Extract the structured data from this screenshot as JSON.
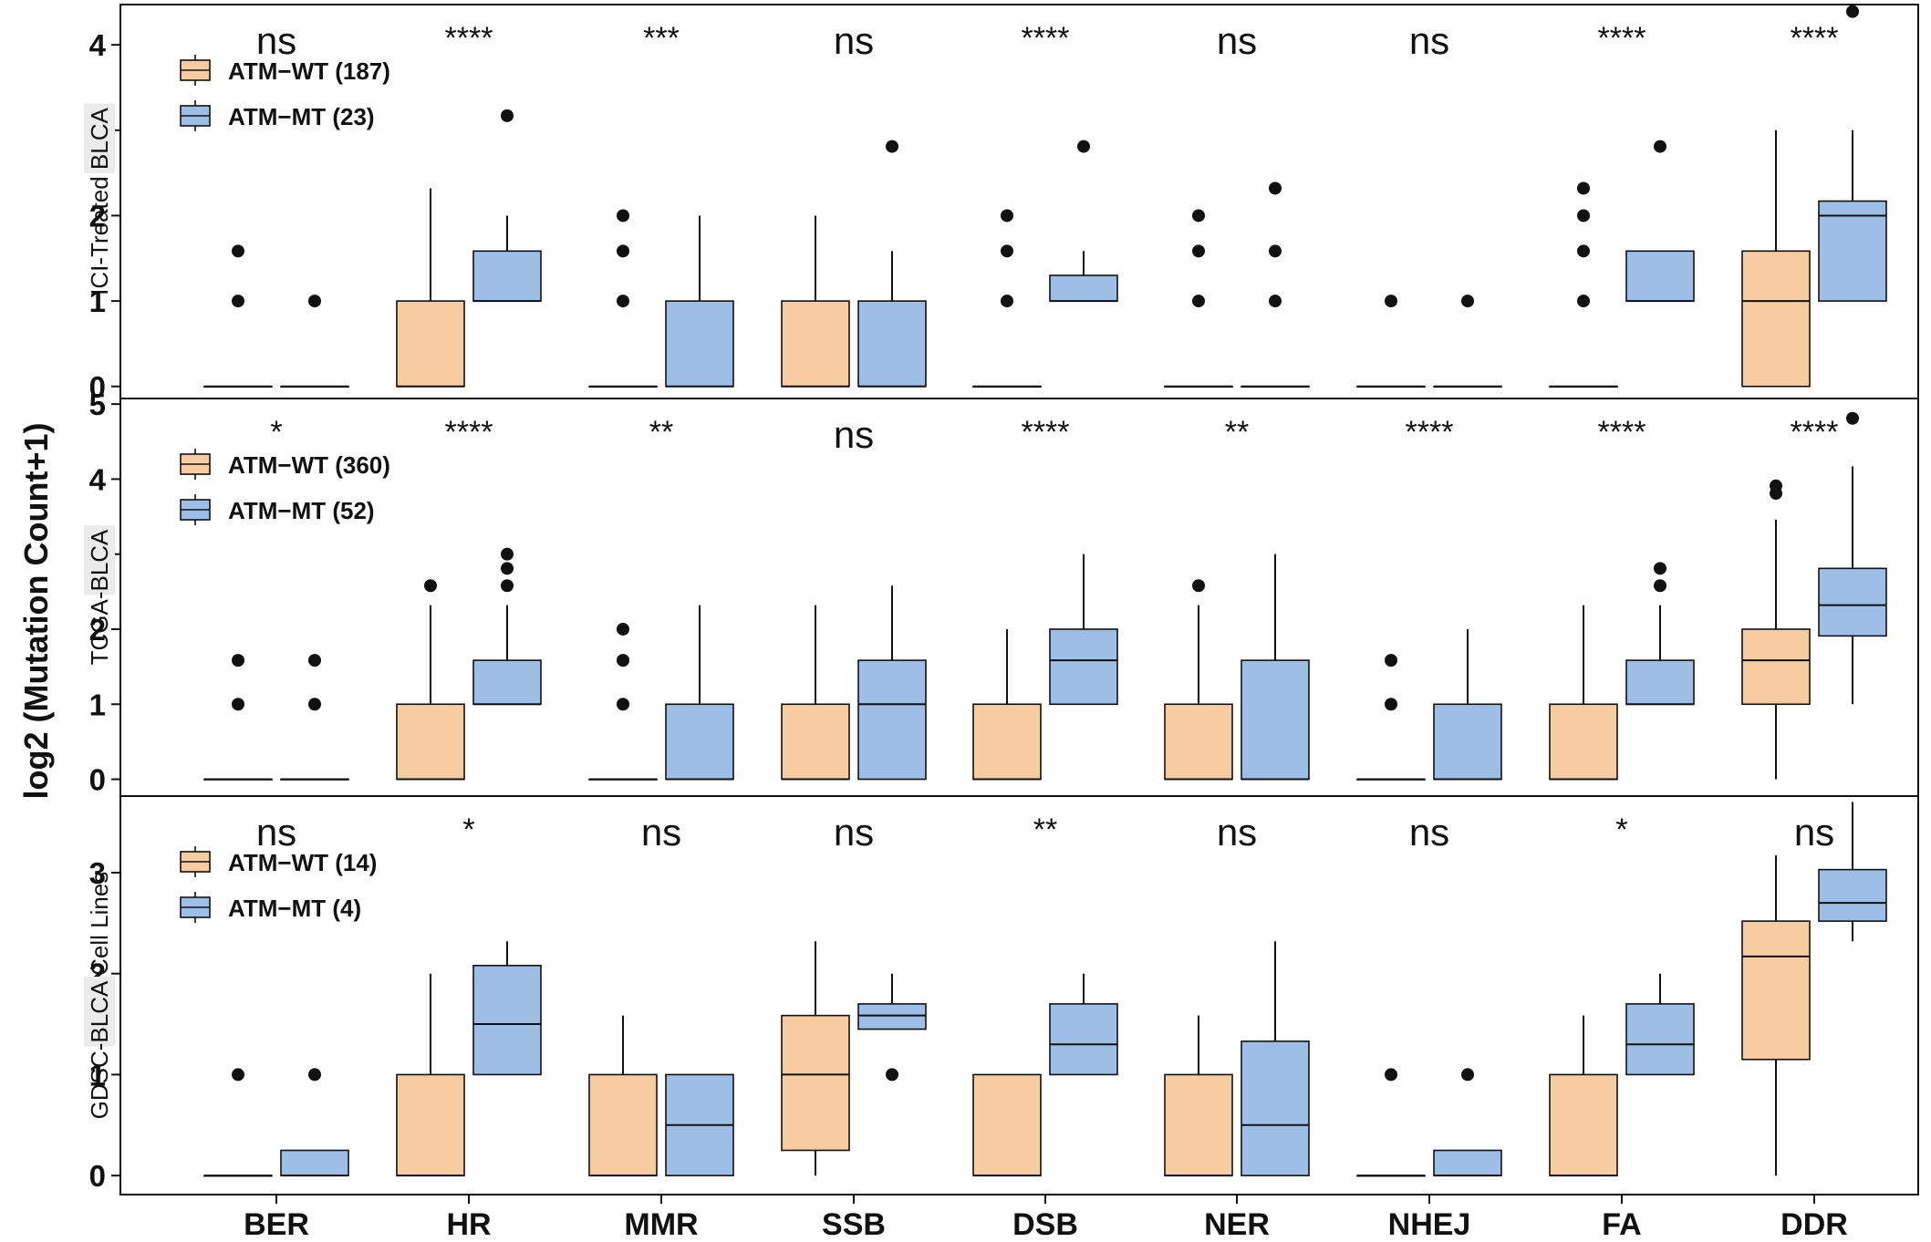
{
  "colors": {
    "wt": "#f7cca0",
    "mt": "#9dbee6",
    "stroke": "#111111",
    "panel_label_bg": "#ebebeb"
  },
  "chart_data": {
    "type": "boxplot",
    "ylabel": "log2 (Mutation Count+1)",
    "categories": [
      "BER",
      "HR",
      "MMR",
      "SSB",
      "DSB",
      "NER",
      "NHEJ",
      "FA",
      "DDR"
    ],
    "panels": [
      {
        "label_plain": "ICI-Treated ",
        "label_boxed": "BLCA",
        "label_after": "",
        "ylim": [
          -0.12,
          4.45
        ],
        "yticks": [
          0,
          1,
          2,
          3,
          4
        ],
        "legend": [
          {
            "group": "wt",
            "label": "ATM−WT (187)"
          },
          {
            "group": "mt",
            "label": "ATM−MT (23)"
          }
        ],
        "significance": [
          "ns",
          "****",
          "***",
          "ns",
          "****",
          "ns",
          "ns",
          "****",
          "****"
        ],
        "wt": [
          {
            "q1": 0,
            "median": 0,
            "q3": 0,
            "low": 0,
            "high": 0,
            "outliers": [
              1,
              1.585
            ]
          },
          {
            "q1": 0,
            "median": 0,
            "q3": 1,
            "low": 0,
            "high": 2.32,
            "outliers": []
          },
          {
            "q1": 0,
            "median": 0,
            "q3": 0,
            "low": 0,
            "high": 0,
            "outliers": [
              1,
              1.585,
              2
            ]
          },
          {
            "q1": 0,
            "median": 0,
            "q3": 1,
            "low": 0,
            "high": 2,
            "outliers": []
          },
          {
            "q1": 0,
            "median": 0,
            "q3": 0,
            "low": 0,
            "high": 0,
            "outliers": [
              1,
              1.585,
              2
            ]
          },
          {
            "q1": 0,
            "median": 0,
            "q3": 0,
            "low": 0,
            "high": 0,
            "outliers": [
              1,
              1.585,
              2
            ]
          },
          {
            "q1": 0,
            "median": 0,
            "q3": 0,
            "low": 0,
            "high": 0,
            "outliers": [
              1
            ]
          },
          {
            "q1": 0,
            "median": 0,
            "q3": 0,
            "low": 0,
            "high": 0,
            "outliers": [
              1,
              1.585,
              2,
              2.32
            ]
          },
          {
            "q1": 0,
            "median": 1,
            "q3": 1.585,
            "low": 0,
            "high": 3,
            "outliers": []
          }
        ],
        "mt": [
          {
            "q1": 0,
            "median": 0,
            "q3": 0,
            "low": 0,
            "high": 0,
            "outliers": [
              1
            ]
          },
          {
            "q1": 1,
            "median": 1,
            "q3": 1.585,
            "low": 1,
            "high": 2,
            "outliers": [
              3.17
            ]
          },
          {
            "q1": 0,
            "median": 0,
            "q3": 1,
            "low": 0,
            "high": 2,
            "outliers": []
          },
          {
            "q1": 0,
            "median": 0,
            "q3": 1,
            "low": 0,
            "high": 1.585,
            "outliers": [
              2.81
            ]
          },
          {
            "q1": 1,
            "median": 1,
            "q3": 1.3,
            "low": 1,
            "high": 1.585,
            "outliers": [
              2.81
            ]
          },
          {
            "q1": 0,
            "median": 0,
            "q3": 0,
            "low": 0,
            "high": 0,
            "outliers": [
              1,
              1.585,
              2.32
            ]
          },
          {
            "q1": 0,
            "median": 0,
            "q3": 0,
            "low": 0,
            "high": 0,
            "outliers": [
              1
            ]
          },
          {
            "q1": 1,
            "median": 1,
            "q3": 1.585,
            "low": 1,
            "high": 1.585,
            "outliers": [
              2.81
            ]
          },
          {
            "q1": 1,
            "median": 2,
            "q3": 2.17,
            "low": 1,
            "high": 3,
            "outliers": [
              4.39
            ]
          }
        ]
      },
      {
        "label_plain": "TCGA-",
        "label_boxed": "BLCA",
        "label_after": "",
        "ylim": [
          -0.2,
          5.05
        ],
        "yticks": [
          0,
          1,
          2,
          3,
          4,
          5
        ],
        "legend": [
          {
            "group": "wt",
            "label": "ATM−WT (360)"
          },
          {
            "group": "mt",
            "label": "ATM−MT (52)"
          }
        ],
        "significance": [
          "*",
          "****",
          "**",
          "ns",
          "****",
          "**",
          "****",
          "****",
          "****"
        ],
        "wt": [
          {
            "q1": 0,
            "median": 0,
            "q3": 0,
            "low": 0,
            "high": 0,
            "outliers": [
              1,
              1.585
            ]
          },
          {
            "q1": 0,
            "median": 0,
            "q3": 1,
            "low": 0,
            "high": 2.32,
            "outliers": [
              2.58
            ]
          },
          {
            "q1": 0,
            "median": 0,
            "q3": 0,
            "low": 0,
            "high": 0,
            "outliers": [
              1,
              1.585,
              2
            ]
          },
          {
            "q1": 0,
            "median": 0,
            "q3": 1,
            "low": 0,
            "high": 2.32,
            "outliers": []
          },
          {
            "q1": 0,
            "median": 0,
            "q3": 1,
            "low": 0,
            "high": 2,
            "outliers": []
          },
          {
            "q1": 0,
            "median": 0,
            "q3": 1,
            "low": 0,
            "high": 2.32,
            "outliers": [
              2.58
            ]
          },
          {
            "q1": 0,
            "median": 0,
            "q3": 0,
            "low": 0,
            "high": 0,
            "outliers": [
              1,
              1.585
            ]
          },
          {
            "q1": 0,
            "median": 0,
            "q3": 1,
            "low": 0,
            "high": 2.32,
            "outliers": []
          },
          {
            "q1": 1,
            "median": 1.585,
            "q3": 2,
            "low": 0,
            "high": 3.46,
            "outliers": [
              3.81,
              3.91
            ]
          }
        ],
        "mt": [
          {
            "q1": 0,
            "median": 0,
            "q3": 0,
            "low": 0,
            "high": 0,
            "outliers": [
              1,
              1.585
            ]
          },
          {
            "q1": 1,
            "median": 1,
            "q3": 1.585,
            "low": 1,
            "high": 2.32,
            "outliers": [
              2.58,
              2.81,
              3
            ]
          },
          {
            "q1": 0,
            "median": 0,
            "q3": 1,
            "low": 0,
            "high": 2.32,
            "outliers": []
          },
          {
            "q1": 0,
            "median": 1,
            "q3": 1.585,
            "low": 0,
            "high": 2.58,
            "outliers": []
          },
          {
            "q1": 1,
            "median": 1.585,
            "q3": 2,
            "low": 1,
            "high": 3,
            "outliers": []
          },
          {
            "q1": 0,
            "median": 0,
            "q3": 1.585,
            "low": 0,
            "high": 3,
            "outliers": []
          },
          {
            "q1": 0,
            "median": 0,
            "q3": 1,
            "low": 0,
            "high": 2,
            "outliers": []
          },
          {
            "q1": 1,
            "median": 1,
            "q3": 1.585,
            "low": 1,
            "high": 2.32,
            "outliers": [
              2.58,
              2.81
            ]
          },
          {
            "q1": 1.91,
            "median": 2.32,
            "q3": 2.81,
            "low": 1,
            "high": 4.17,
            "outliers": [
              4.81
            ]
          }
        ]
      },
      {
        "label_plain": "GDSC-",
        "label_boxed": "BLCA",
        "label_after": " Cell Lines",
        "ylim": [
          -0.17,
          3.74
        ],
        "yticks": [
          0,
          1,
          2,
          3
        ],
        "legend": [
          {
            "group": "wt",
            "label": "ATM−WT (14)"
          },
          {
            "group": "mt",
            "label": "ATM−MT (4)"
          }
        ],
        "significance": [
          "ns",
          "*",
          "ns",
          "ns",
          "**",
          "ns",
          "ns",
          "*",
          "ns"
        ],
        "wt": [
          {
            "q1": 0,
            "median": 0,
            "q3": 0,
            "low": 0,
            "high": 0,
            "outliers": [
              1
            ]
          },
          {
            "q1": 0,
            "median": 0,
            "q3": 1,
            "low": 0,
            "high": 2,
            "outliers": []
          },
          {
            "q1": 0,
            "median": 0,
            "q3": 1,
            "low": 0,
            "high": 1.585,
            "outliers": []
          },
          {
            "q1": 0.25,
            "median": 1,
            "q3": 1.585,
            "low": 0,
            "high": 2.32,
            "outliers": []
          },
          {
            "q1": 0,
            "median": 0,
            "q3": 1,
            "low": 0,
            "high": 1,
            "outliers": []
          },
          {
            "q1": 0,
            "median": 0,
            "q3": 1,
            "low": 0,
            "high": 1.585,
            "outliers": []
          },
          {
            "q1": 0,
            "median": 0,
            "q3": 0,
            "low": 0,
            "high": 0,
            "outliers": [
              1
            ]
          },
          {
            "q1": 0,
            "median": 0,
            "q3": 1,
            "low": 0,
            "high": 1.585,
            "outliers": []
          },
          {
            "q1": 1.15,
            "median": 2.17,
            "q3": 2.52,
            "low": 0,
            "high": 3.17,
            "outliers": []
          }
        ],
        "mt": [
          {
            "q1": 0,
            "median": 0,
            "q3": 0.25,
            "low": 0,
            "high": 0.25,
            "outliers": [
              1
            ]
          },
          {
            "q1": 1,
            "median": 1.5,
            "q3": 2.08,
            "low": 1,
            "high": 2.32,
            "outliers": []
          },
          {
            "q1": 0,
            "median": 0.5,
            "q3": 1,
            "low": 0,
            "high": 1,
            "outliers": []
          },
          {
            "q1": 1.45,
            "median": 1.585,
            "q3": 1.7,
            "low": 1.45,
            "high": 2,
            "outliers": [
              1
            ]
          },
          {
            "q1": 1,
            "median": 1.3,
            "q3": 1.7,
            "low": 1,
            "high": 2,
            "outliers": []
          },
          {
            "q1": 0,
            "median": 0.5,
            "q3": 1.33,
            "low": 0,
            "high": 2.32,
            "outliers": []
          },
          {
            "q1": 0,
            "median": 0,
            "q3": 0.25,
            "low": 0,
            "high": 0.25,
            "outliers": [
              1
            ]
          },
          {
            "q1": 1,
            "median": 1.3,
            "q3": 1.7,
            "low": 1,
            "high": 2,
            "outliers": []
          },
          {
            "q1": 2.52,
            "median": 2.7,
            "q3": 3.03,
            "low": 2.32,
            "high": 3.7,
            "outliers": []
          }
        ]
      }
    ]
  }
}
